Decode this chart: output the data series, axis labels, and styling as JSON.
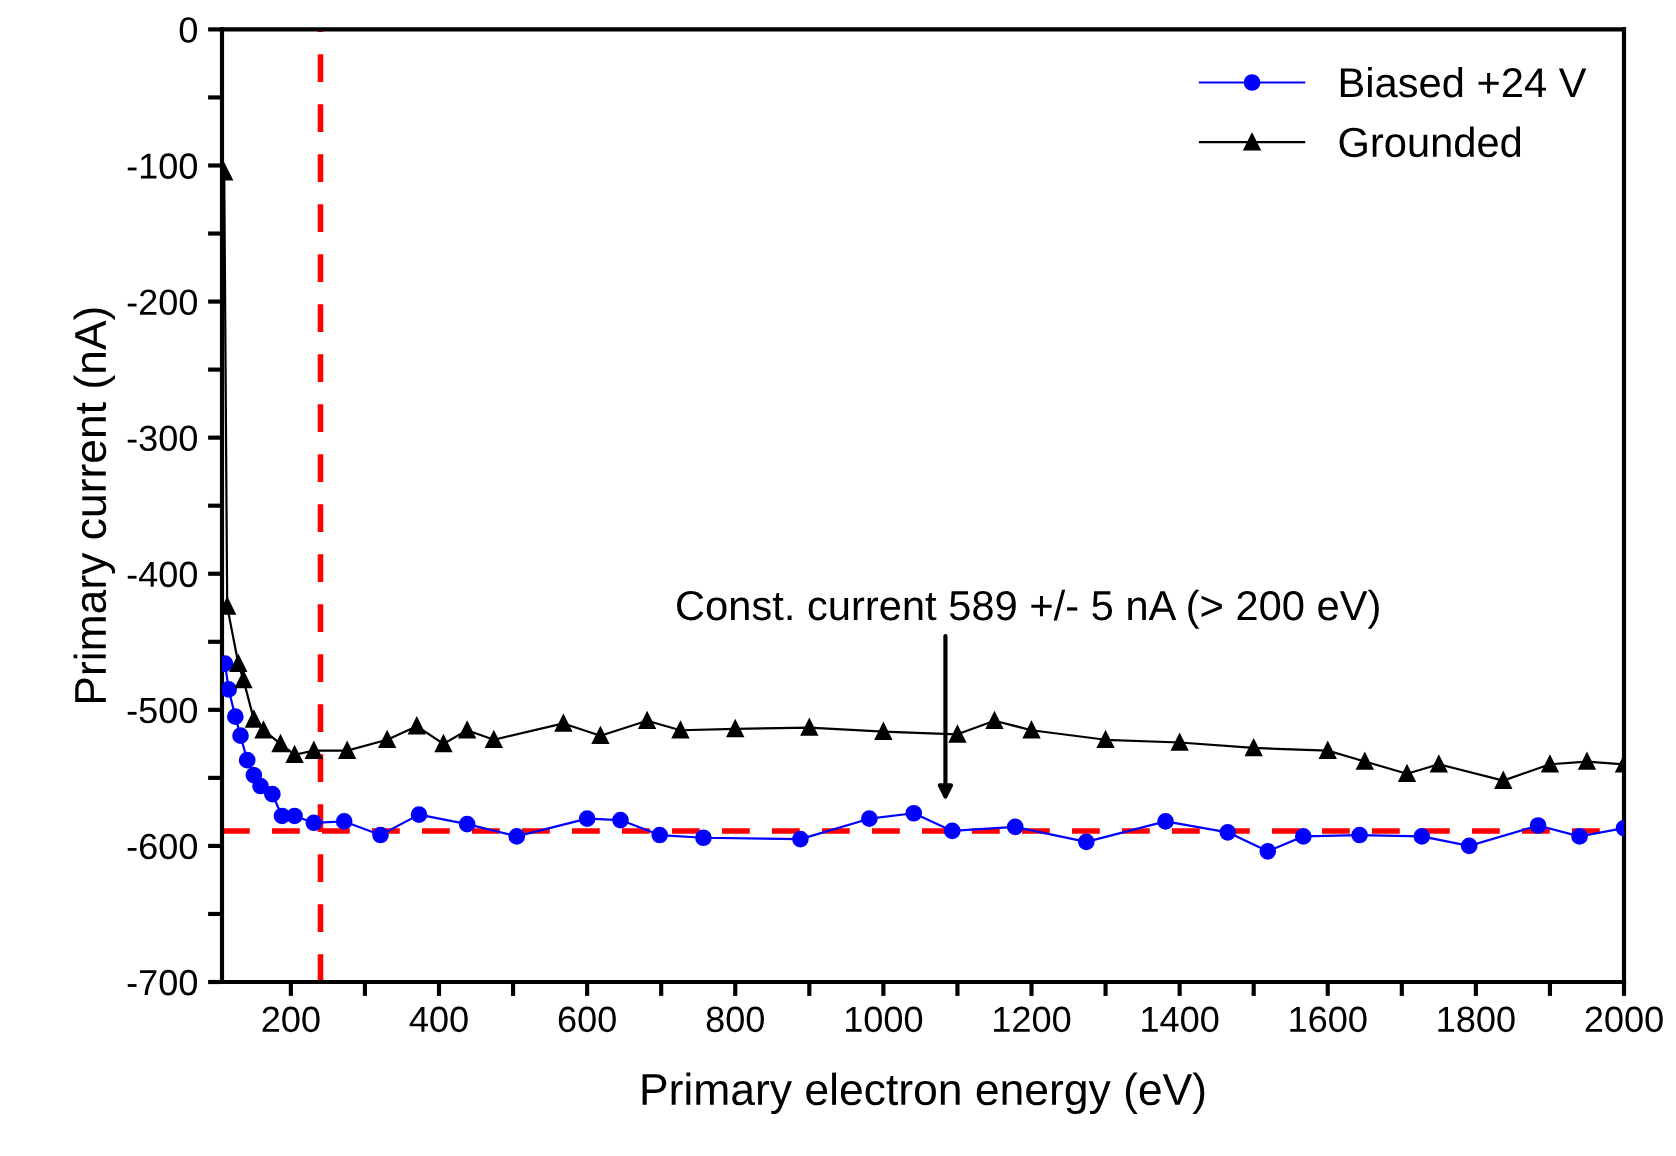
{
  "chart_data": {
    "type": "line",
    "xlabel": "Primary electron energy (eV)",
    "ylabel": "Primary current (nA)",
    "xlim": [
      107,
      2000
    ],
    "ylim": [
      -700,
      0
    ],
    "xticks": [
      200,
      {
        "value": 300,
        "label": null
      },
      400,
      {
        "value": 500,
        "label": null
      },
      600,
      {
        "value": 700,
        "label": null
      },
      800,
      {
        "value": 900,
        "label": null
      },
      1000,
      {
        "value": 1100,
        "label": null
      },
      1200,
      {
        "value": 1300,
        "label": null
      },
      1400,
      {
        "value": 1500,
        "label": null
      },
      1600,
      {
        "value": 1700,
        "label": null
      },
      1800,
      {
        "value": 1900,
        "label": null
      },
      2000
    ],
    "yticks": [
      0,
      {
        "value": -50,
        "label": null
      },
      -100,
      {
        "value": -150,
        "label": null
      },
      -200,
      {
        "value": -250,
        "label": null
      },
      -300,
      {
        "value": -350,
        "label": null
      },
      -400,
      {
        "value": -450,
        "label": null
      },
      -500,
      {
        "value": -550,
        "label": null
      },
      -600,
      {
        "value": -650,
        "label": null
      },
      -700
    ],
    "grid": false,
    "legend": "top right",
    "line_style": "solid",
    "series": [
      {
        "name": "Biased +24 V",
        "color": "#0000ff",
        "marker": "circle",
        "x": [
          111,
          116,
          125,
          132,
          141,
          150,
          159,
          175,
          188,
          205,
          231,
          272,
          321,
          373,
          438,
          505,
          600,
          645,
          698,
          757,
          888,
          981,
          1041,
          1093,
          1178,
          1274,
          1381,
          1465,
          1519,
          1567,
          1643,
          1727,
          1791,
          1884,
          1940,
          2000
        ],
        "values": [
          -466,
          -485,
          -505,
          -519,
          -537,
          -548,
          -556,
          -562,
          -578,
          -578,
          -583,
          -582,
          -592,
          -577,
          -584,
          -593,
          -580,
          -581,
          -592,
          -594,
          -595,
          -580,
          -576,
          -589,
          -586,
          -597,
          -582,
          -590,
          -604,
          -593,
          -592,
          -593,
          -600,
          -585,
          -593,
          -587
        ]
      },
      {
        "name": "Grounded",
        "color": "#000000",
        "marker": "triangle",
        "x": [
          110,
          114,
          129,
          136,
          150,
          163,
          186,
          205,
          231,
          276,
          330,
          370,
          406,
          438,
          474,
          568,
          618,
          681,
          726,
          800,
          900,
          1000,
          1100,
          1150,
          1200,
          1300,
          1400,
          1500,
          1600,
          1650,
          1707,
          1750,
          1837,
          1900,
          1950,
          2000
        ],
        "values": [
          -105,
          -424,
          -466,
          -478,
          -507,
          -515,
          -525,
          -533,
          -530,
          -530,
          -522,
          -512,
          -525,
          -515,
          -522,
          -510,
          -519,
          -508,
          -515,
          -514,
          -513,
          -516,
          -518,
          -508,
          -515,
          -522,
          -524,
          -528,
          -530,
          -538,
          -547,
          -540,
          -552,
          -540,
          -538,
          -540
        ]
      }
    ],
    "ref_lines": [
      {
        "axis": "y",
        "value": -589,
        "color": "#ff0000",
        "line_style": "dashed"
      },
      {
        "axis": "x",
        "value": 240,
        "color": "#ff0000",
        "line_style": "dashed"
      }
    ],
    "annotations": [
      "Const. current 589 +/- 5 nA (> 200 eV)"
    ]
  }
}
